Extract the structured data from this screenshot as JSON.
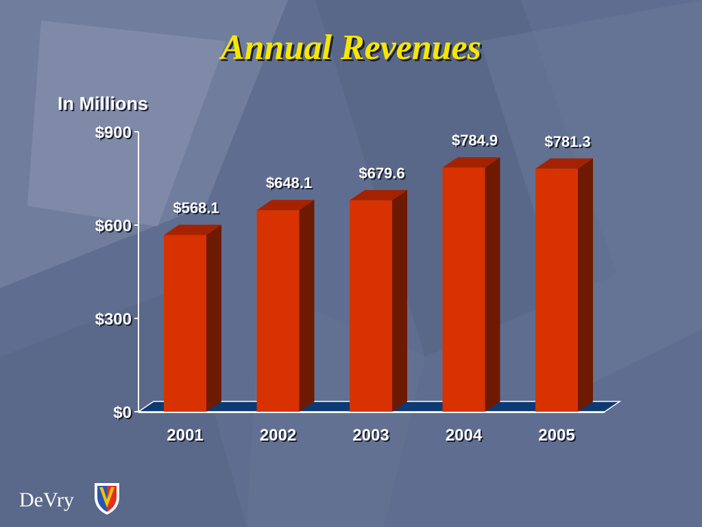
{
  "slide": {
    "title": "Annual Revenues",
    "logo_text": "DeVry"
  },
  "colors": {
    "background": "#5f6e90",
    "title": "#f7e600",
    "bar_front": "#d83200",
    "bar_side": "#6e1a00",
    "bar_top": "#a52200",
    "floor": "#0d3a73",
    "text": "#ffffff"
  },
  "chart_data": {
    "type": "bar",
    "title": "Annual Revenues",
    "ylabel": "In Millions",
    "xlabel": "",
    "categories": [
      "2001",
      "2002",
      "2003",
      "2004",
      "2005"
    ],
    "values": [
      568.1,
      648.1,
      679.6,
      784.9,
      781.3
    ],
    "data_labels": [
      "$568.1",
      "$648.1",
      "$679.6",
      "$784.9",
      "$781.3"
    ],
    "ylim": [
      0,
      900
    ],
    "yticks": [
      0,
      300,
      600,
      900
    ],
    "ytick_labels": [
      "$0",
      "$300",
      "$600",
      "$900"
    ],
    "grid": false,
    "three_d": true
  }
}
